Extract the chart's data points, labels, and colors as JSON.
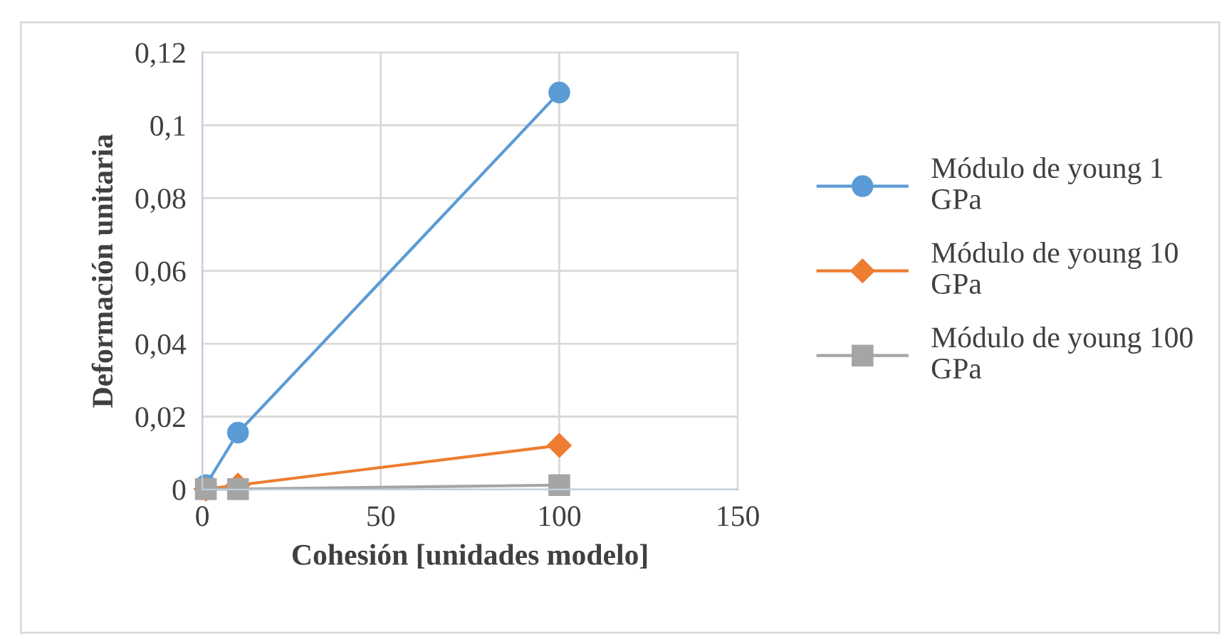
{
  "chart_data": {
    "type": "line",
    "xlabel": "Cohesión [unidades modelo]",
    "ylabel": "Deformación unitaria",
    "x": [
      1,
      10,
      100
    ],
    "series": [
      {
        "name": "Módulo de young 1 GPa",
        "color": "#5b9bd5",
        "marker": "circle",
        "values": [
          0.0012,
          0.0156,
          0.109
        ]
      },
      {
        "name": "Módulo de young 10 GPa",
        "color": "#ed7d31",
        "marker": "diamond",
        "values": [
          0.0001,
          0.0012,
          0.0121
        ]
      },
      {
        "name": "Módulo de young 100 GPa",
        "color": "#a5a5a5",
        "marker": "square",
        "values": [
          0.0001,
          0.0001,
          0.0012
        ]
      }
    ],
    "xlim": [
      0,
      150
    ],
    "xticks": [
      0,
      50,
      100,
      150
    ],
    "ylim": [
      0,
      0.12
    ],
    "yticks": [
      0,
      {
        "value": 0.02,
        "label": "0,02"
      },
      {
        "value": 0.04,
        "label": "0,04"
      },
      {
        "value": 0.06,
        "label": "0,06"
      },
      {
        "value": 0.08,
        "label": "0,08"
      },
      {
        "value": 0.1,
        "label": "0,1"
      },
      {
        "value": 0.12,
        "label": "0,12"
      }
    ],
    "grid": true,
    "legend": "right",
    "line_style": "solid"
  }
}
